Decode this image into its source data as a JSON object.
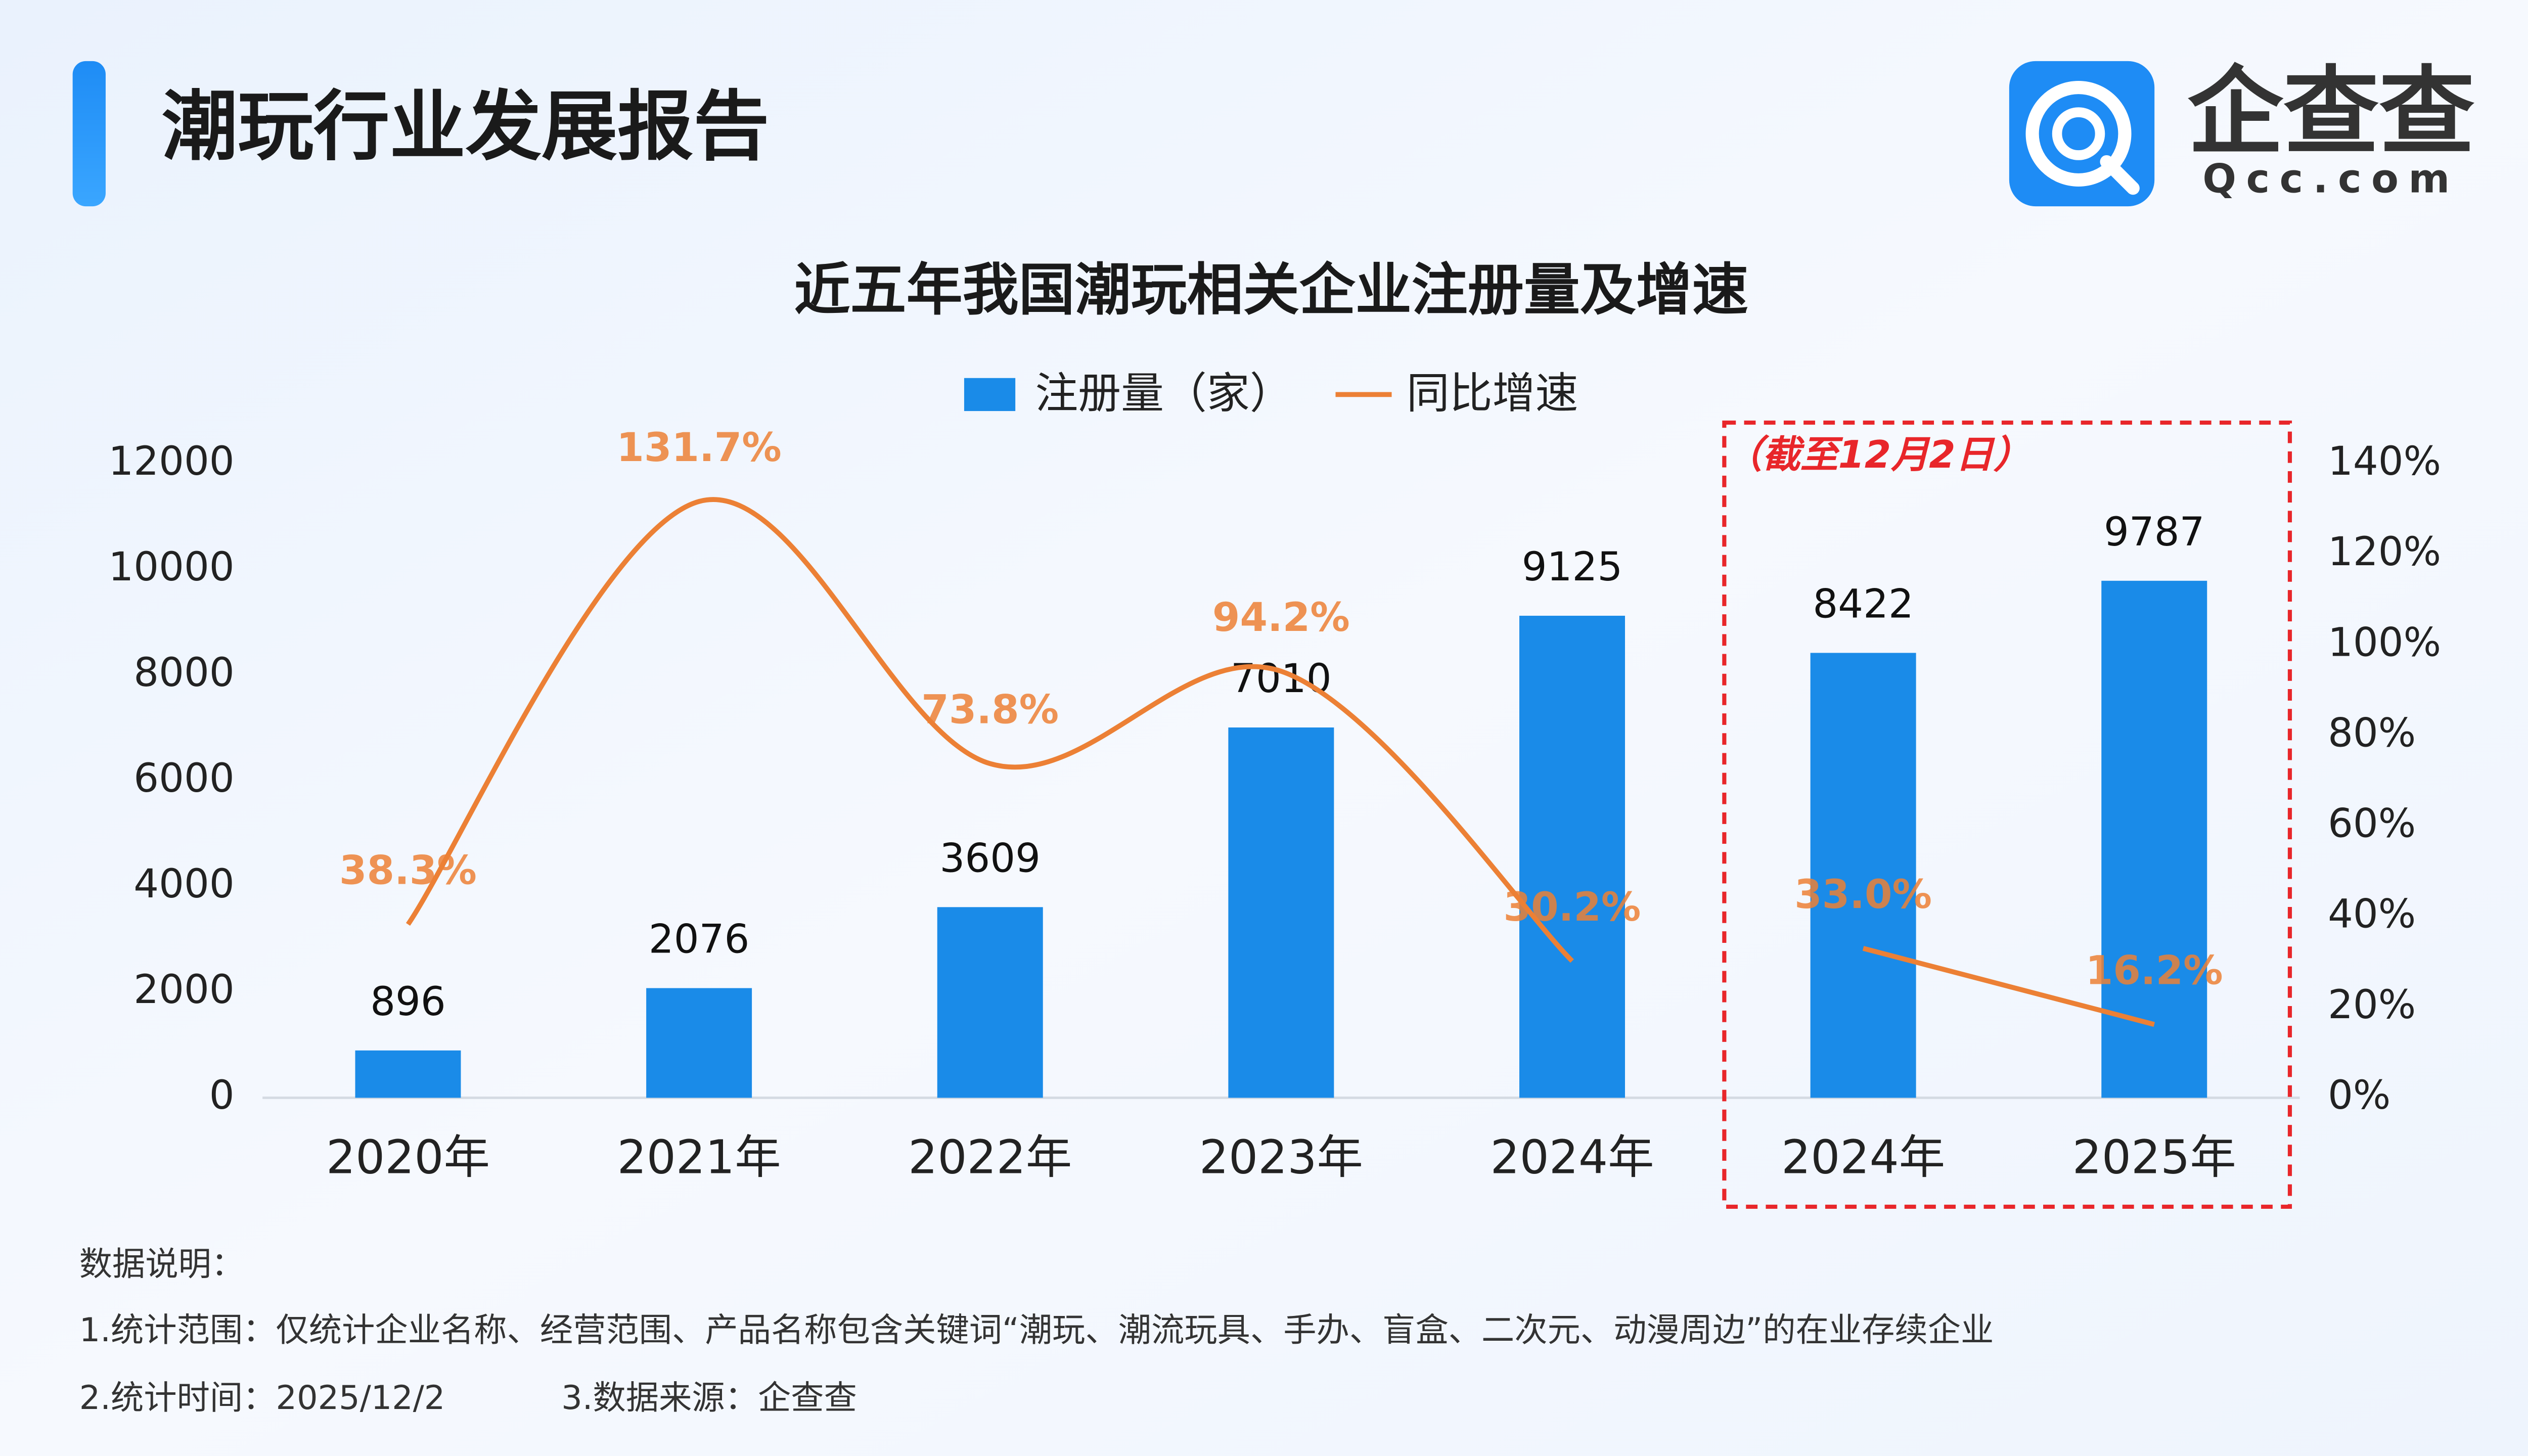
{
  "header": {
    "title": "潮玩行业发展报告"
  },
  "logo": {
    "name": "企查查",
    "domain": "Qcc.com"
  },
  "chart_data": {
    "type": "bar",
    "title": "近五年我国潮玩相关企业注册量及增速",
    "categories": [
      "2020年",
      "2021年",
      "2022年",
      "2023年",
      "2024年",
      "2024年",
      "2025年"
    ],
    "series": [
      {
        "name": "注册量（家）",
        "color": "#1a8be8",
        "type": "bar",
        "values": [
          896,
          2076,
          3609,
          7010,
          9125,
          8422,
          9787
        ]
      },
      {
        "name": "同比增速",
        "color": "#ec8035",
        "type": "line",
        "axis": "y2",
        "values": [
          38.3,
          131.7,
          73.8,
          94.2,
          30.2,
          33.0,
          16.2
        ],
        "value_labels": [
          "38.3%",
          "131.7%",
          "73.8%",
          "94.2%",
          "30.2%",
          "33.0%",
          "16.2%"
        ]
      }
    ],
    "ylim": [
      0,
      12000
    ],
    "yticks": [
      0,
      2000,
      4000,
      6000,
      8000,
      10000,
      12000
    ],
    "y2lim": [
      0,
      140
    ],
    "y2ticks": [
      {
        "value": 0,
        "label": "0%"
      },
      {
        "value": 20,
        "label": "20%"
      },
      {
        "value": 40,
        "label": "40%"
      },
      {
        "value": 60,
        "label": "60%"
      },
      {
        "value": 80,
        "label": "80%"
      },
      {
        "value": 100,
        "label": "100%"
      },
      {
        "value": 120,
        "label": "120%"
      },
      {
        "value": 140,
        "label": "140%"
      }
    ],
    "highlight": {
      "categories": [
        5,
        6
      ],
      "color": "#e8262a",
      "annotation": "（截至12月2日）"
    },
    "grid": false,
    "legend": "top"
  },
  "notes": {
    "heading": "数据说明：",
    "scope": "1.统计范围：仅统计企业名称、经营范围、产品名称包含关键词“潮玩、潮流玩具、手办、盲盒、二次元、动漫周边”的在业存续企业",
    "time": "2.统计时间：2025/12/2",
    "source": "3.数据来源：企查查"
  }
}
